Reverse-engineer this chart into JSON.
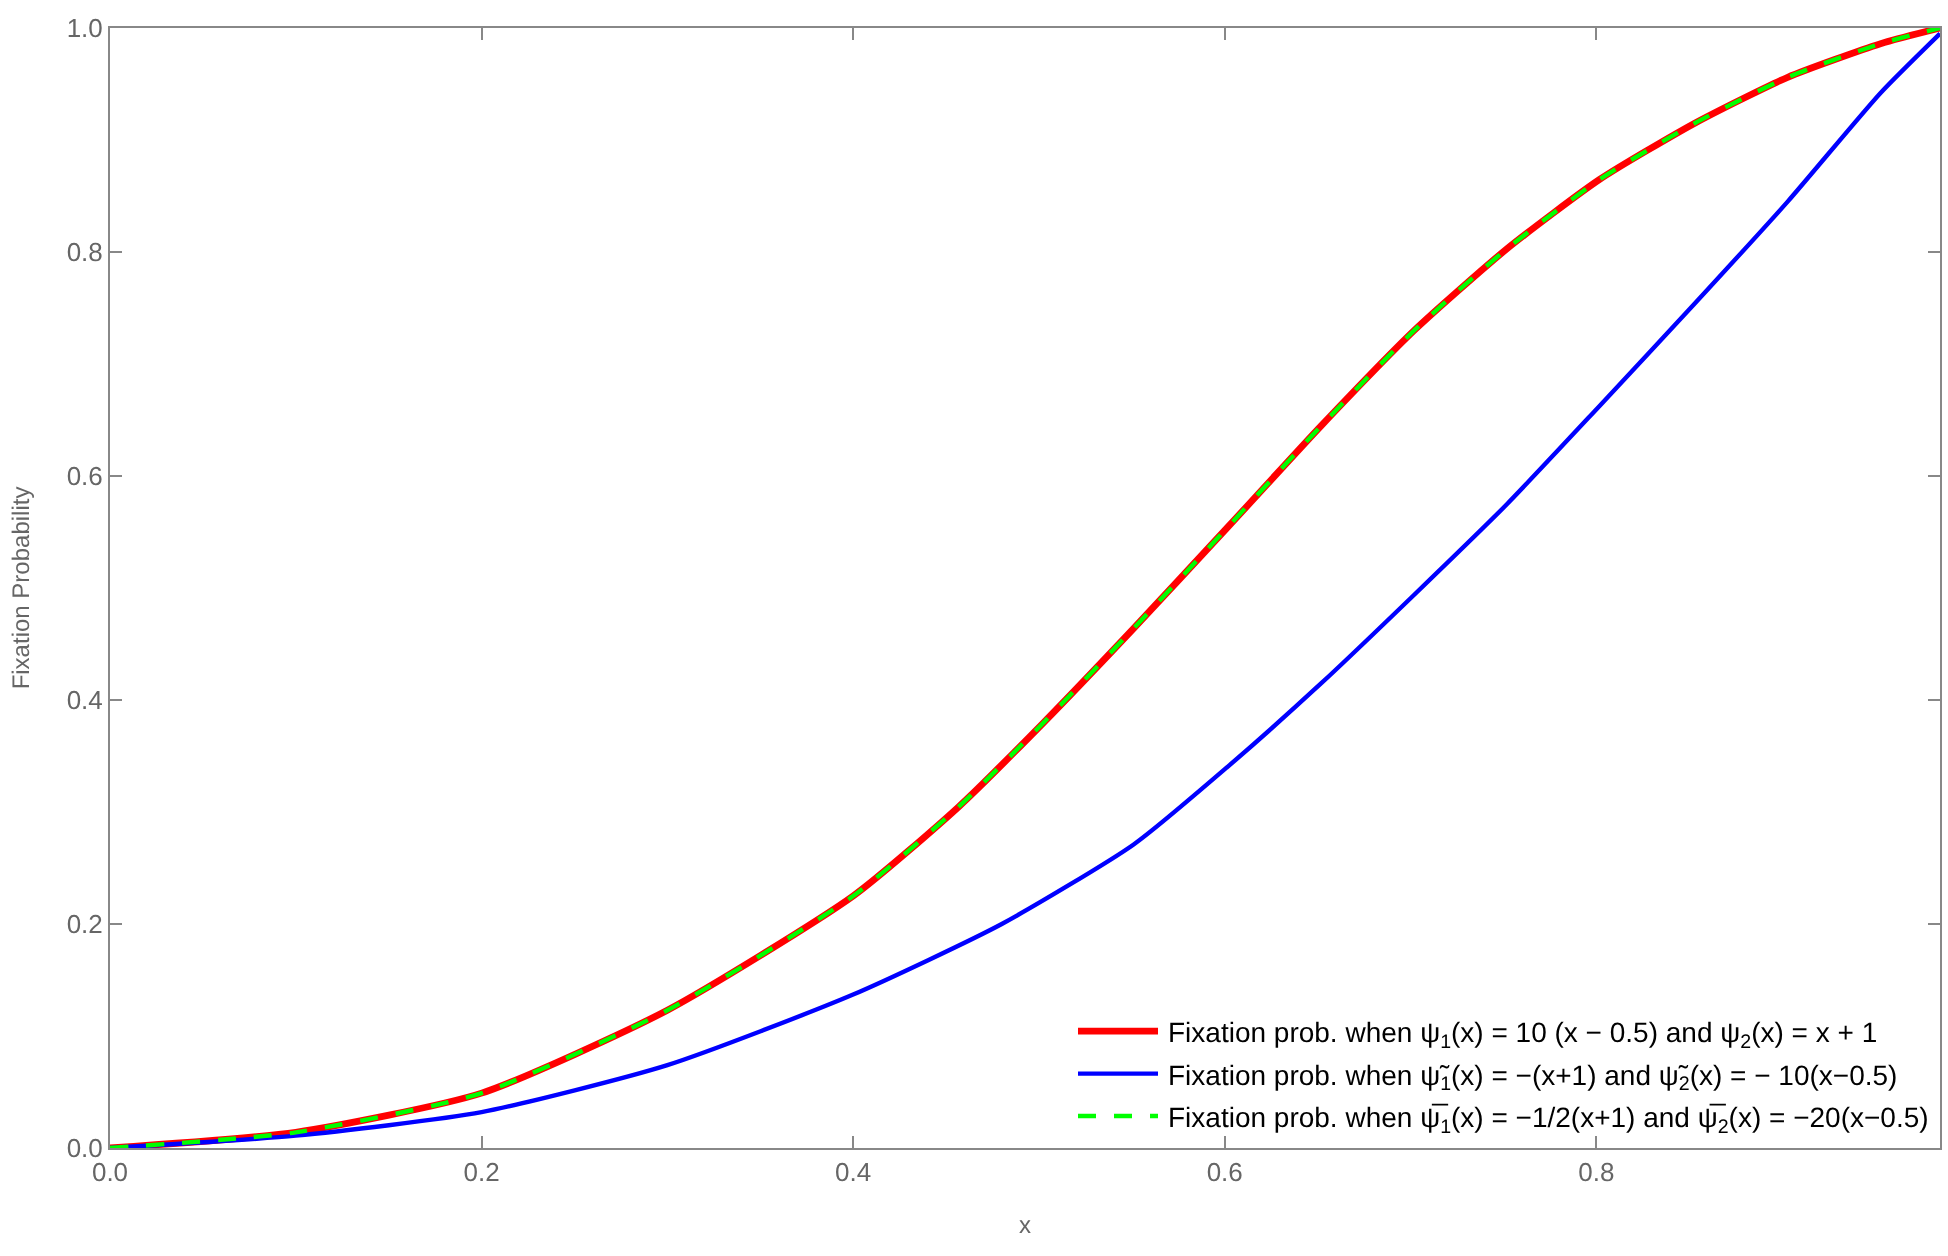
{
  "chart_data": {
    "type": "line",
    "xlabel": "x",
    "ylabel": "Fixation Probability",
    "xlim": [
      0,
      0.985
    ],
    "ylim": [
      0,
      1.0
    ],
    "xticks": [
      {
        "value": 0,
        "label": "0.0"
      },
      0.2,
      0.4,
      0.6,
      0.8
    ],
    "yticks": [
      {
        "value": 0,
        "label": "0.0"
      },
      0.2,
      0.4,
      0.6,
      0.8,
      {
        "value": 1,
        "label": "1.0"
      }
    ],
    "grid": false,
    "legend": "bottom right",
    "marker": "none",
    "series": [
      {
        "name": "Fixation prob. when ψ$_{1}$(x) = 10 (x − 0.5) and ψ$_{2}$(x) = x + 1",
        "color": "#ff0000",
        "line_style": "solid",
        "x": [
          0,
          0.1,
          0.2,
          0.3,
          0.4,
          0.457,
          0.502,
          0.551,
          0.602,
          0.652,
          0.702,
          0.752,
          0.802,
          0.853,
          0.903,
          0.953,
          0.985
        ],
        "values": [
          0,
          0.014,
          0.049,
          0.123,
          0.225,
          0.305,
          0.379,
          0.464,
          0.555,
          0.645,
          0.73,
          0.803,
          0.865,
          0.915,
          0.956,
          0.986,
          1.0
        ]
      },
      {
        "name": "Fixation prob. when ψ̃$_{1}$(x) = −(x+1) and ψ̃$_{2}$(x) = − 10(x−0.5)",
        "color": "#0000ff",
        "line_style": "solid",
        "x": [
          0,
          0.1,
          0.2,
          0.3,
          0.4,
          0.48,
          0.551,
          0.602,
          0.652,
          0.702,
          0.752,
          0.802,
          0.853,
          0.903,
          0.953,
          0.985
        ],
        "values": [
          0,
          0.011,
          0.032,
          0.074,
          0.137,
          0.2,
          0.271,
          0.341,
          0.415,
          0.494,
          0.575,
          0.663,
          0.754,
          0.845,
          0.942,
          0.995
        ]
      },
      {
        "name": "Fixation prob. when ψ̅$_{1}$(x) = −1/2(x+1) and ψ̅$_{2}$(x) = −20(x−0.5)",
        "color": "#00ff00",
        "line_style": "dashed",
        "x": [
          0,
          0.1,
          0.2,
          0.3,
          0.4,
          0.457,
          0.502,
          0.551,
          0.602,
          0.652,
          0.702,
          0.752,
          0.802,
          0.853,
          0.903,
          0.953,
          0.985
        ],
        "values": [
          0,
          0.014,
          0.049,
          0.123,
          0.225,
          0.305,
          0.379,
          0.464,
          0.555,
          0.645,
          0.73,
          0.803,
          0.865,
          0.915,
          0.956,
          0.986,
          1.0
        ]
      }
    ]
  }
}
